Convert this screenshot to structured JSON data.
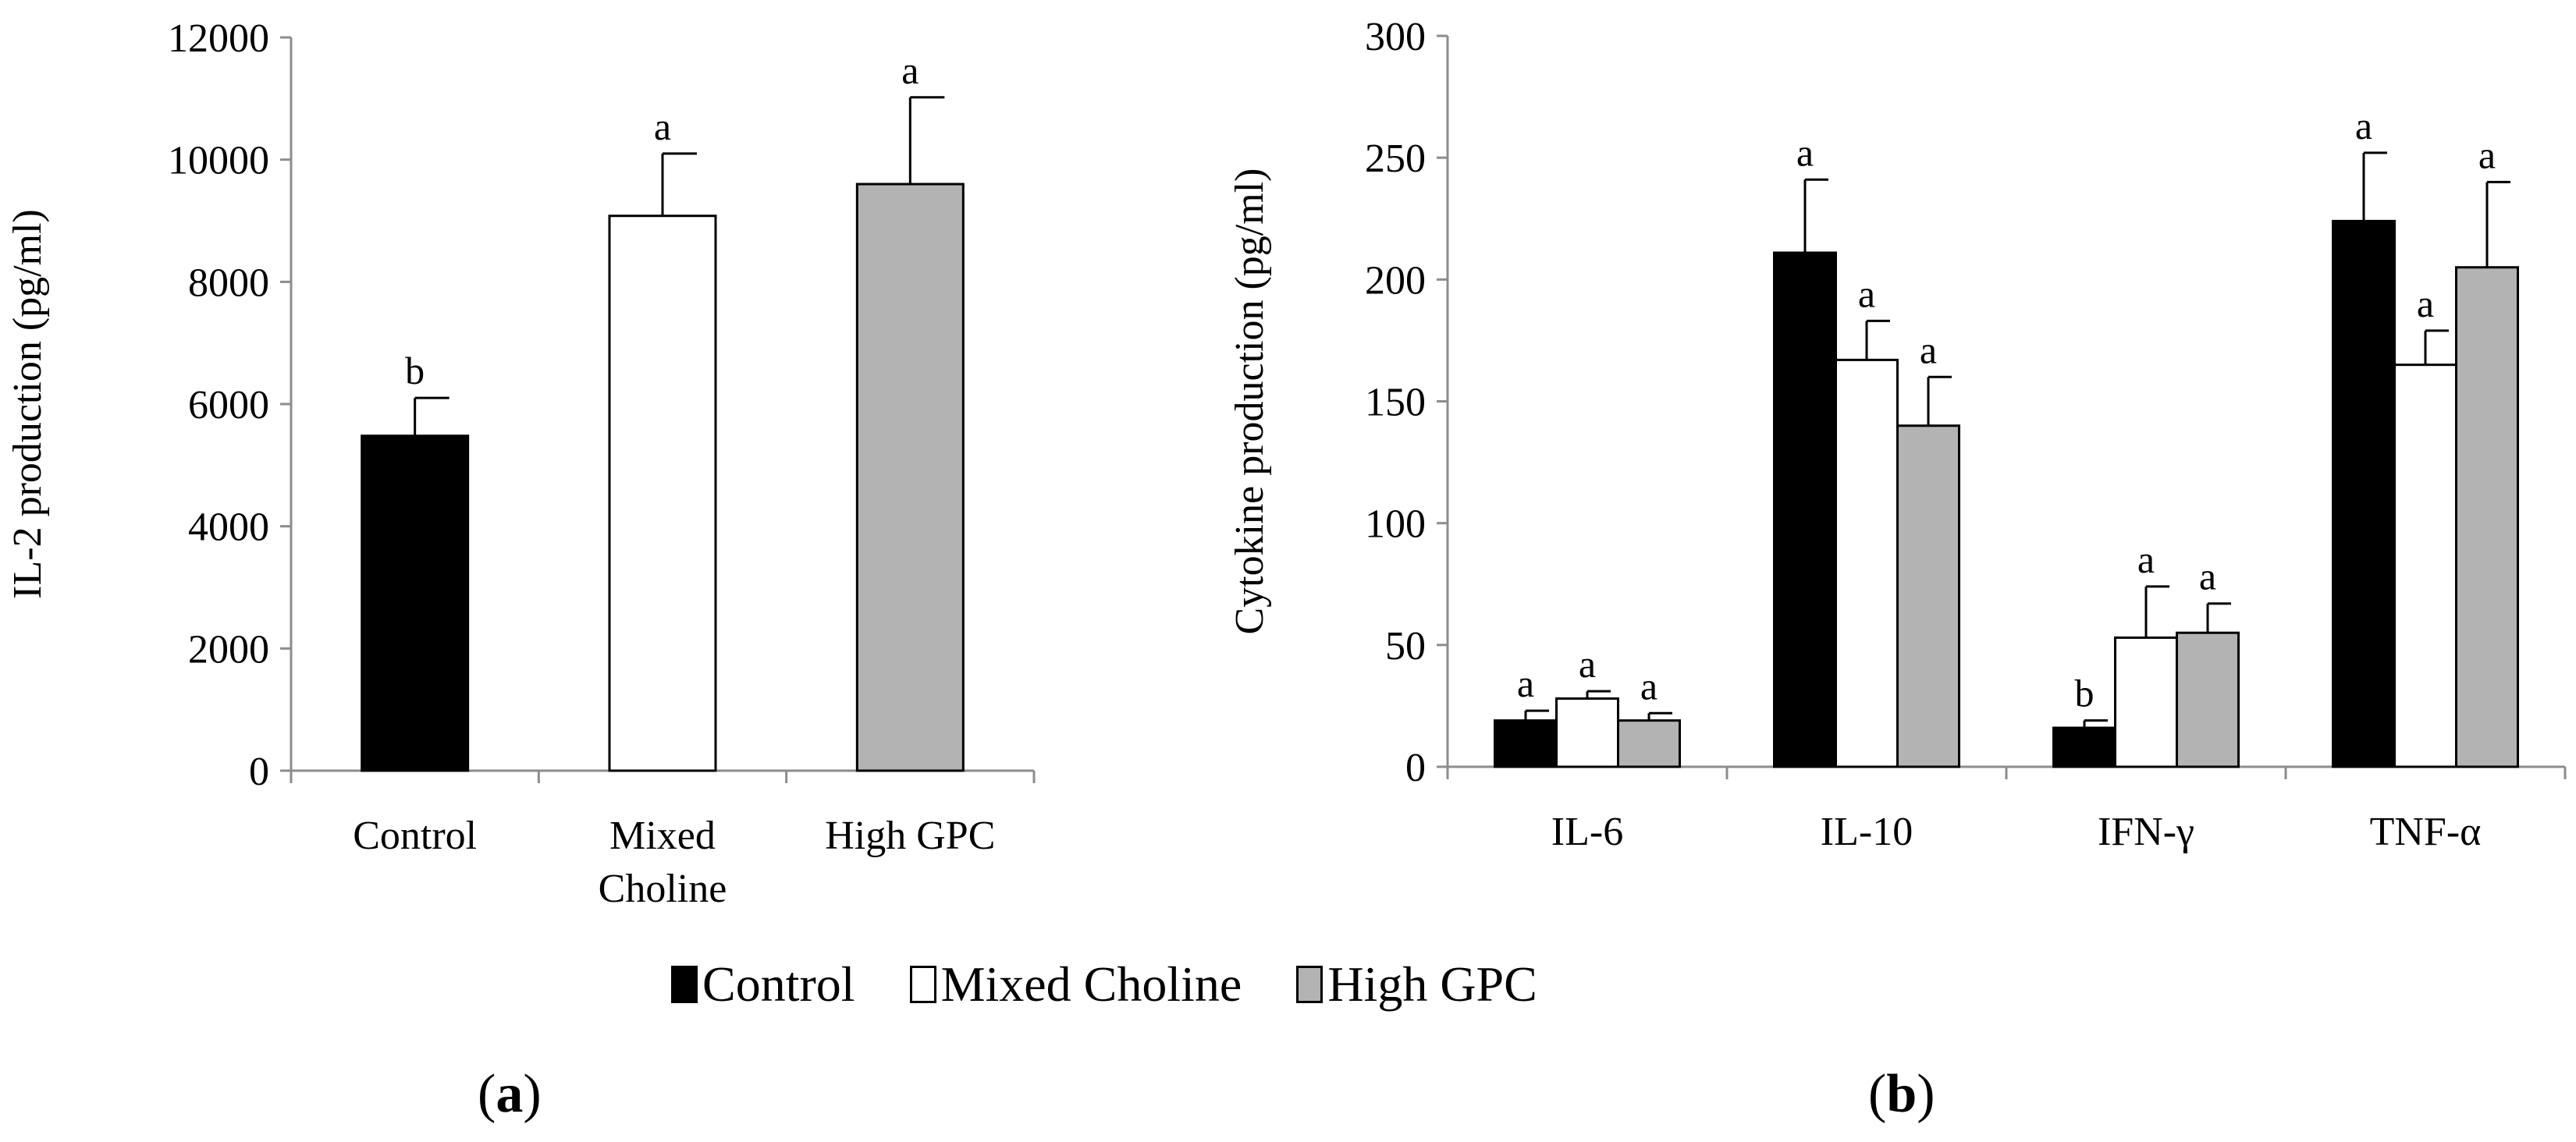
{
  "chart_data": [
    {
      "type": "bar",
      "panel": "(a)",
      "ylabel": "IL-2 production (pg/ml)",
      "ylim": [
        0,
        12000
      ],
      "yticks": [
        0,
        2000,
        4000,
        6000,
        8000,
        10000,
        12000
      ],
      "categories": [
        {
          "lines": [
            "Control"
          ]
        },
        {
          "lines": [
            "Mixed",
            "Choline"
          ]
        },
        {
          "lines": [
            "High GPC"
          ]
        }
      ],
      "series": [
        {
          "name": "Control",
          "color": "#000000",
          "values": [
            5480,
            null,
            null
          ],
          "errors": [
            620,
            null,
            null
          ],
          "letters": [
            "b",
            null,
            null
          ]
        },
        {
          "name": "Mixed Choline",
          "color": "#ffffff",
          "values": [
            null,
            9080,
            null
          ],
          "errors": [
            null,
            1020,
            null
          ],
          "letters": [
            null,
            "a",
            null
          ]
        },
        {
          "name": "High GPC",
          "color": "#b3b3b3",
          "values": [
            null,
            null,
            9600
          ],
          "errors": [
            null,
            null,
            1420
          ],
          "letters": [
            null,
            null,
            "a"
          ]
        }
      ]
    },
    {
      "type": "bar",
      "panel": "(b)",
      "ylabel": "Cytokine production (pg/ml)",
      "ylim": [
        0,
        300
      ],
      "yticks": [
        0,
        50,
        100,
        150,
        200,
        250,
        300
      ],
      "categories": [
        {
          "lines": [
            "IL-6"
          ]
        },
        {
          "lines": [
            "IL-10"
          ]
        },
        {
          "lines": [
            "IFN-γ"
          ]
        },
        {
          "lines": [
            "TNF-α"
          ]
        }
      ],
      "series": [
        {
          "name": "Control",
          "color": "#000000",
          "values": [
            19,
            211,
            16,
            224
          ],
          "errors": [
            4,
            30,
            3,
            28
          ],
          "letters": [
            "a",
            "a",
            "b",
            "a"
          ]
        },
        {
          "name": "Mixed Choline",
          "color": "#ffffff",
          "values": [
            28,
            167,
            53,
            165
          ],
          "errors": [
            3,
            16,
            21,
            14
          ],
          "letters": [
            "a",
            "a",
            "a",
            "a"
          ]
        },
        {
          "name": "High GPC",
          "color": "#b3b3b3",
          "values": [
            19,
            140,
            55,
            205
          ],
          "errors": [
            3,
            20,
            12,
            35
          ],
          "letters": [
            "a",
            "a",
            "a",
            "a"
          ]
        }
      ]
    }
  ],
  "legend": [
    {
      "label": "Control",
      "color": "#000000"
    },
    {
      "label": "Mixed Choline",
      "color": "#ffffff"
    },
    {
      "label": "High GPC",
      "color": "#b3b3b3"
    }
  ],
  "panel_labels": {
    "a": "a",
    "b": "b"
  }
}
